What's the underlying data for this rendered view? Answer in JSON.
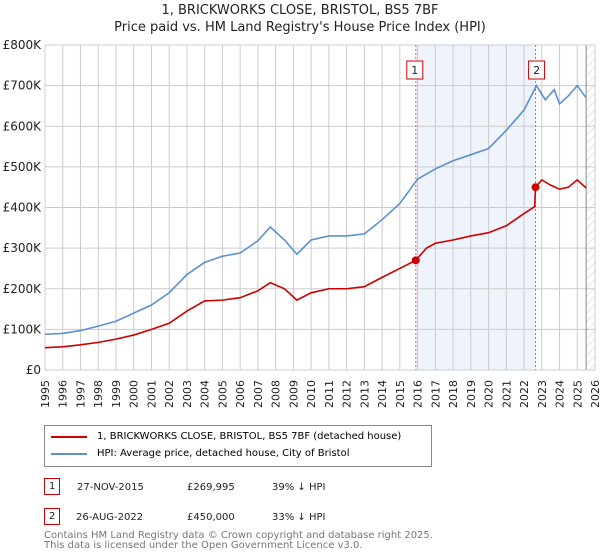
{
  "chart_data": {
    "type": "line",
    "title": "1, BRICKWORKS CLOSE, BRISTOL, BS5 7BF",
    "subtitle": "Price paid vs. HM Land Registry's House Price Index (HPI)",
    "xlim": [
      1995,
      2026
    ],
    "ylim": [
      0,
      800000
    ],
    "x_ticks": [
      "1995",
      "1996",
      "1997",
      "1998",
      "1999",
      "2000",
      "2001",
      "2002",
      "2003",
      "2004",
      "2005",
      "2006",
      "2007",
      "2008",
      "2009",
      "2010",
      "2011",
      "2012",
      "2013",
      "2014",
      "2015",
      "2016",
      "2017",
      "2018",
      "2019",
      "2020",
      "2021",
      "2022",
      "2023",
      "2024",
      "2025",
      "2026"
    ],
    "y_ticks": [
      {
        "v": 0,
        "label": "£0"
      },
      {
        "v": 100000,
        "label": "£100K"
      },
      {
        "v": 200000,
        "label": "£200K"
      },
      {
        "v": 300000,
        "label": "£300K"
      },
      {
        "v": 400000,
        "label": "£400K"
      },
      {
        "v": 500000,
        "label": "£500K"
      },
      {
        "v": 600000,
        "label": "£600K"
      },
      {
        "v": 700000,
        "label": "£700K"
      },
      {
        "v": 800000,
        "label": "£800K"
      }
    ],
    "grid": true,
    "series": [
      {
        "name": "1, BRICKWORKS CLOSE, BRISTOL, BS5 7BF (detached house)",
        "color": "#cc0000",
        "x": [
          1995,
          1996,
          1997,
          1998,
          1999,
          2000,
          2001,
          2002,
          2003,
          2004,
          2005,
          2006,
          2007,
          2007.7,
          2008.5,
          2009.2,
          2010,
          2011,
          2012,
          2013,
          2014,
          2015,
          2015.9,
          2016.5,
          2017,
          2018,
          2019,
          2020,
          2021,
          2022,
          2022.6,
          2022.65,
          2023,
          2023.5,
          2024,
          2024.5,
          2025,
          2025.5
        ],
        "y": [
          55000,
          57000,
          62000,
          68000,
          76000,
          86000,
          100000,
          115000,
          145000,
          170000,
          172000,
          178000,
          195000,
          215000,
          200000,
          172000,
          190000,
          200000,
          200000,
          205000,
          228000,
          250000,
          269995,
          300000,
          312000,
          320000,
          330000,
          338000,
          355000,
          385000,
          402000,
          450000,
          468000,
          455000,
          445000,
          450000,
          468000,
          448000
        ]
      },
      {
        "name": "HPI: Average price, detached house, City of Bristol",
        "color": "#5b8fd0",
        "x": [
          1995,
          1996,
          1997,
          1998,
          1999,
          2000,
          2001,
          2002,
          2003,
          2004,
          2005,
          2006,
          2007,
          2007.7,
          2008.5,
          2009.2,
          2010,
          2011,
          2012,
          2013,
          2014,
          2015,
          2016,
          2017,
          2018,
          2019,
          2020,
          2021,
          2022,
          2022.7,
          2023.2,
          2023.7,
          2024,
          2024.5,
          2025,
          2025.5
        ],
        "y": [
          88000,
          90000,
          97000,
          108000,
          120000,
          140000,
          160000,
          190000,
          235000,
          265000,
          280000,
          288000,
          318000,
          352000,
          320000,
          285000,
          320000,
          330000,
          330000,
          335000,
          370000,
          410000,
          470000,
          495000,
          515000,
          530000,
          545000,
          590000,
          640000,
          700000,
          665000,
          690000,
          655000,
          675000,
          700000,
          670000
        ]
      }
    ],
    "annotations": [
      {
        "label": "1",
        "x": 2015.9,
        "y": 269995,
        "date": "27-NOV-2015",
        "price": "£269,995",
        "hpi": "39% ↓ HPI"
      },
      {
        "label": "2",
        "x": 2022.65,
        "y": 450000,
        "date": "26-AUG-2022",
        "price": "£450,000",
        "hpi": "33% ↓ HPI"
      }
    ],
    "forecast_start": 2025.5,
    "legend": "below"
  },
  "footer": [
    "Contains HM Land Registry data © Crown copyright and database right 2025.",
    "This data is licensed under the Open Government Licence v3.0."
  ]
}
